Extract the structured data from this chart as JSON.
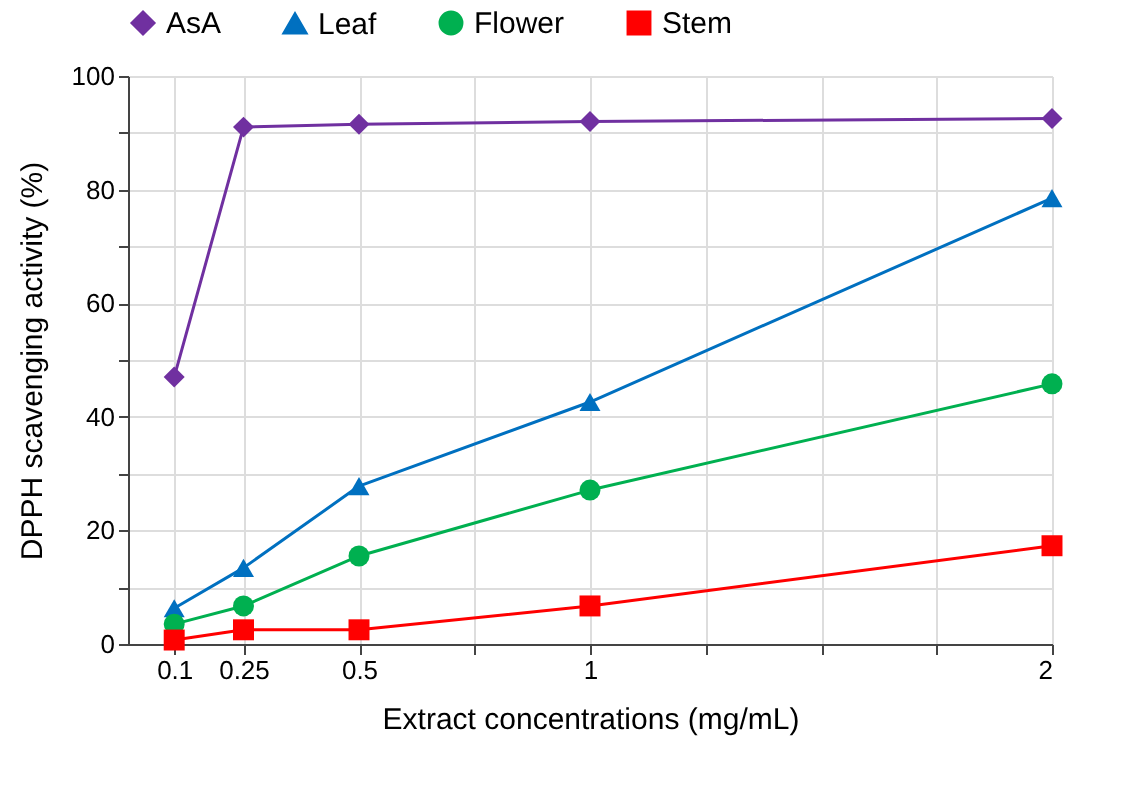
{
  "chart_data": {
    "type": "line",
    "xlabel": "Extract concentrations (mg/mL)",
    "ylabel": "DPPH scavenging activity (%)",
    "x": [
      0.1,
      0.25,
      0.5,
      1,
      2
    ],
    "series": [
      {
        "name": "AsA",
        "color": "#7030a0",
        "marker": "diamond",
        "values": [
          47,
          91,
          91.5,
          92,
          92.5
        ]
      },
      {
        "name": "Leaf",
        "color": "#0070c0",
        "marker": "triangle",
        "values": [
          6.3,
          13.4,
          27.8,
          42.6,
          78.5
        ]
      },
      {
        "name": "Flower",
        "color": "#00b050",
        "marker": "circle",
        "values": [
          3.5,
          6.7,
          15.5,
          27.1,
          45.8
        ]
      },
      {
        "name": "Stem",
        "color": "#ff0000",
        "marker": "square",
        "values": [
          0.7,
          2.5,
          2.5,
          6.7,
          17.3
        ]
      }
    ],
    "xlim": [
      0,
      2
    ],
    "xticks": [
      0.1,
      0.25,
      0.5,
      {
        "value": 0.75,
        "label": null
      },
      1,
      {
        "value": 1.25,
        "label": null
      },
      {
        "value": 1.5,
        "label": null
      },
      {
        "value": 1.75,
        "label": null
      },
      2
    ],
    "ylim": [
      0,
      100
    ],
    "yticks": [
      0,
      {
        "value": 10,
        "label": null
      },
      20,
      {
        "value": 30,
        "label": null
      },
      40,
      {
        "value": 50,
        "label": null
      },
      60,
      {
        "value": 70,
        "label": null
      },
      80,
      {
        "value": 90,
        "label": null
      },
      100
    ],
    "grid": true,
    "legend": "top",
    "line_style": "solid"
  }
}
